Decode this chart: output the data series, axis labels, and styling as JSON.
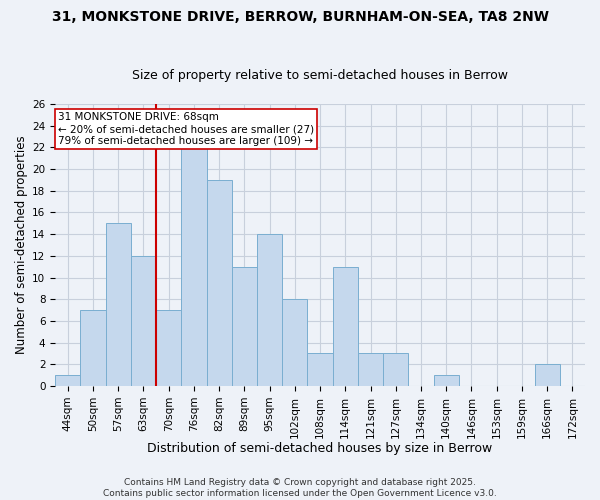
{
  "title": "31, MONKSTONE DRIVE, BERROW, BURNHAM-ON-SEA, TA8 2NW",
  "subtitle": "Size of property relative to semi-detached houses in Berrow",
  "xlabel": "Distribution of semi-detached houses by size in Berrow",
  "ylabel": "Number of semi-detached properties",
  "categories": [
    "44sqm",
    "50sqm",
    "57sqm",
    "63sqm",
    "70sqm",
    "76sqm",
    "82sqm",
    "89sqm",
    "95sqm",
    "102sqm",
    "108sqm",
    "114sqm",
    "121sqm",
    "127sqm",
    "134sqm",
    "140sqm",
    "146sqm",
    "153sqm",
    "159sqm",
    "166sqm",
    "172sqm"
  ],
  "values": [
    1,
    7,
    15,
    12,
    7,
    22,
    19,
    11,
    14,
    8,
    3,
    11,
    3,
    3,
    0,
    1,
    0,
    0,
    0,
    2,
    0
  ],
  "bar_color": "#c5d8ed",
  "bar_edge_color": "#7aaed0",
  "vline_position": 3.5,
  "vline_color": "#cc0000",
  "annotation_text": "31 MONKSTONE DRIVE: 68sqm\n← 20% of semi-detached houses are smaller (27)\n79% of semi-detached houses are larger (109) →",
  "annotation_box_color": "#ffffff",
  "annotation_box_edge": "#cc0000",
  "ylim": [
    0,
    26
  ],
  "yticks": [
    0,
    2,
    4,
    6,
    8,
    10,
    12,
    14,
    16,
    18,
    20,
    22,
    24,
    26
  ],
  "grid_color": "#c8d0dc",
  "background_color": "#eef2f8",
  "footer_text": "Contains HM Land Registry data © Crown copyright and database right 2025.\nContains public sector information licensed under the Open Government Licence v3.0.",
  "title_fontsize": 10,
  "subtitle_fontsize": 9,
  "xlabel_fontsize": 9,
  "ylabel_fontsize": 8.5,
  "tick_fontsize": 7.5,
  "annotation_fontsize": 7.5,
  "footer_fontsize": 6.5
}
